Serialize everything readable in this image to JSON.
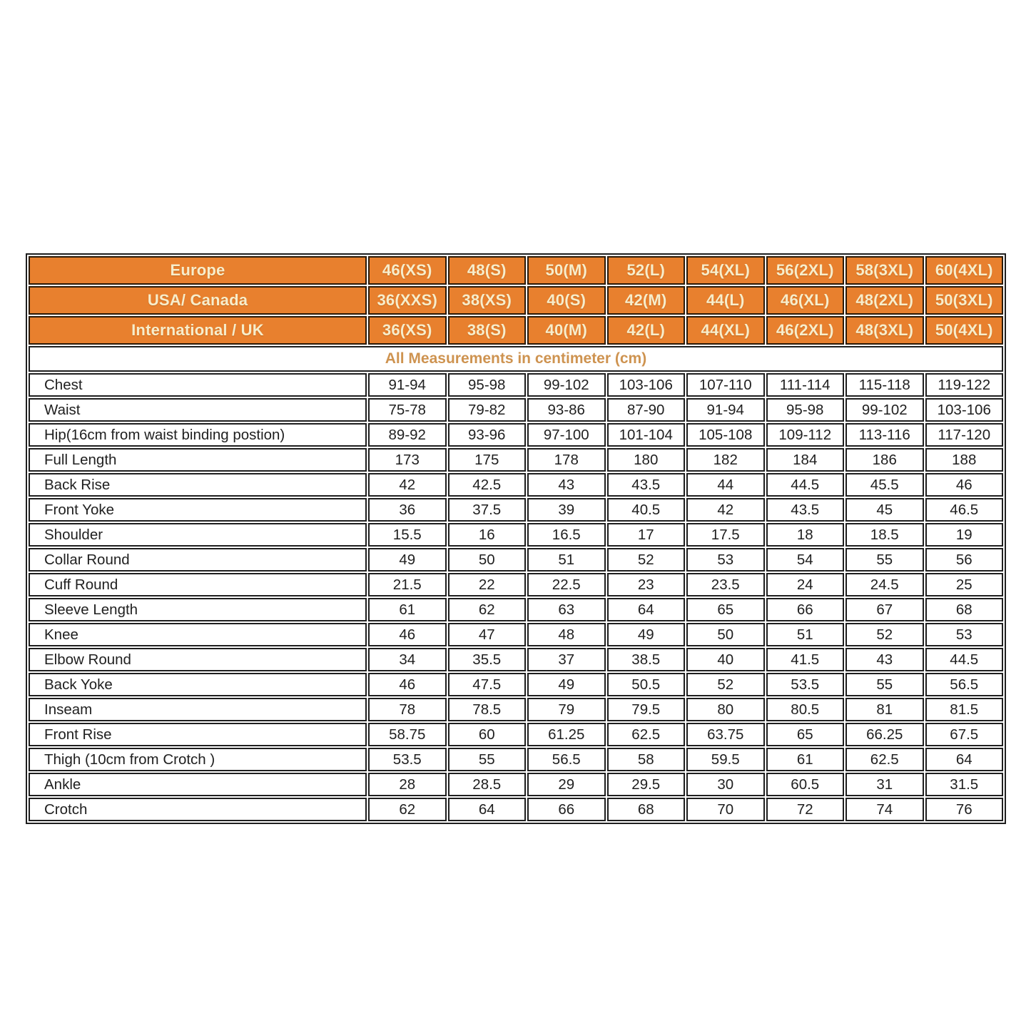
{
  "colors": {
    "page_bg": "#ffffff",
    "header_bg": "#E8802E",
    "header_text": "#F7EDCB",
    "header_border": "#2b1a08",
    "border_dark": "#1f1f1f",
    "body_text": "#1f1f1f",
    "subtitle_text": "#CE9350"
  },
  "table": {
    "subtitle": "All Measurements in centimeter (cm)",
    "header_rows": [
      {
        "label": "Europe",
        "sizes": [
          "46(XS)",
          "48(S)",
          "50(M)",
          "52(L)",
          "54(XL)",
          "56(2XL)",
          "58(3XL)",
          "60(4XL)"
        ]
      },
      {
        "label": "USA/ Canada",
        "sizes": [
          "36(XXS)",
          "38(XS)",
          "40(S)",
          "42(M)",
          "44(L)",
          "46(XL)",
          "48(2XL)",
          "50(3XL)"
        ]
      },
      {
        "label": "International / UK",
        "sizes": [
          "36(XS)",
          "38(S)",
          "40(M)",
          "42(L)",
          "44(XL)",
          "46(2XL)",
          "48(3XL)",
          "50(4XL)"
        ]
      }
    ],
    "rows": [
      {
        "label": "Chest",
        "values": [
          "91-94",
          "95-98",
          "99-102",
          "103-106",
          "107-110",
          "111-114",
          "115-118",
          "119-122"
        ]
      },
      {
        "label": "Waist",
        "values": [
          "75-78",
          "79-82",
          "93-86",
          "87-90",
          "91-94",
          "95-98",
          "99-102",
          "103-106"
        ]
      },
      {
        "label": "Hip(16cm from waist binding postion)",
        "values": [
          "89-92",
          "93-96",
          "97-100",
          "101-104",
          "105-108",
          "109-112",
          "113-116",
          "117-120"
        ]
      },
      {
        "label": "Full Length",
        "values": [
          "173",
          "175",
          "178",
          "180",
          "182",
          "184",
          "186",
          "188"
        ]
      },
      {
        "label": "Back Rise",
        "values": [
          "42",
          "42.5",
          "43",
          "43.5",
          "44",
          "44.5",
          "45.5",
          "46"
        ]
      },
      {
        "label": "Front Yoke",
        "values": [
          "36",
          "37.5",
          "39",
          "40.5",
          "42",
          "43.5",
          "45",
          "46.5"
        ]
      },
      {
        "label": "Shoulder",
        "values": [
          "15.5",
          "16",
          "16.5",
          "17",
          "17.5",
          "18",
          "18.5",
          "19"
        ]
      },
      {
        "label": "Collar Round",
        "values": [
          "49",
          "50",
          "51",
          "52",
          "53",
          "54",
          "55",
          "56"
        ]
      },
      {
        "label": "Cuff Round",
        "values": [
          "21.5",
          "22",
          "22.5",
          "23",
          "23.5",
          "24",
          "24.5",
          "25"
        ]
      },
      {
        "label": "Sleeve Length",
        "values": [
          "61",
          "62",
          "63",
          "64",
          "65",
          "66",
          "67",
          "68"
        ]
      },
      {
        "label": "Knee",
        "values": [
          "46",
          "47",
          "48",
          "49",
          "50",
          "51",
          "52",
          "53"
        ]
      },
      {
        "label": "Elbow Round",
        "values": [
          "34",
          "35.5",
          "37",
          "38.5",
          "40",
          "41.5",
          "43",
          "44.5"
        ]
      },
      {
        "label": "Back Yoke",
        "values": [
          "46",
          "47.5",
          "49",
          "50.5",
          "52",
          "53.5",
          "55",
          "56.5"
        ]
      },
      {
        "label": "Inseam",
        "values": [
          "78",
          "78.5",
          "79",
          "79.5",
          "80",
          "80.5",
          "81",
          "81.5"
        ]
      },
      {
        "label": "Front Rise",
        "values": [
          "58.75",
          "60",
          "61.25",
          "62.5",
          "63.75",
          "65",
          "66.25",
          "67.5"
        ]
      },
      {
        "label": "Thigh (10cm from Crotch )",
        "values": [
          "53.5",
          "55",
          "56.5",
          "58",
          "59.5",
          "61",
          "62.5",
          "64"
        ]
      },
      {
        "label": "Ankle",
        "values": [
          "28",
          "28.5",
          "29",
          "29.5",
          "30",
          "60.5",
          "31",
          "31.5"
        ]
      },
      {
        "label": "Crotch",
        "values": [
          "62",
          "64",
          "66",
          "68",
          "70",
          "72",
          "74",
          "76"
        ]
      }
    ]
  }
}
